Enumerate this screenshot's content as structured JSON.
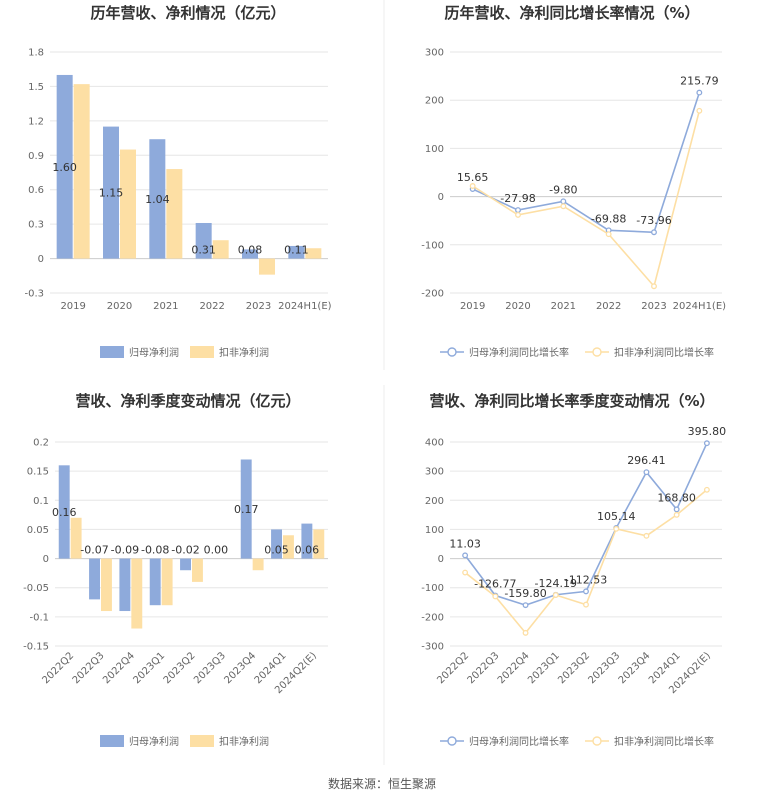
{
  "chart_data": [
    {
      "type": "bar",
      "title": "历年营收、净利情况（亿元）",
      "categories": [
        "2019",
        "2020",
        "2021",
        "2022",
        "2023",
        "2024H1(E)"
      ],
      "series": [
        {
          "name": "归母净利润",
          "values": [
            1.6,
            1.15,
            1.04,
            0.31,
            0.08,
            0.11
          ],
          "color": "#8eaadb",
          "labels": [
            "1.60",
            "1.15",
            "1.04",
            "0.31",
            "0.08",
            "0.11"
          ]
        },
        {
          "name": "扣非净利润",
          "values": [
            1.52,
            0.95,
            0.78,
            0.16,
            -0.14,
            0.09
          ],
          "color": "#fddfa4"
        }
      ],
      "yticks": [
        "1.8",
        "1.5",
        "1.2",
        "0.9",
        "0.6",
        "0.3",
        "0",
        "-0.3"
      ],
      "ylim": [
        -0.3,
        1.8
      ],
      "legend": "bottom"
    },
    {
      "type": "line",
      "title": "历年营收、净利同比增长率情况（%）",
      "categories": [
        "2019",
        "2020",
        "2021",
        "2022",
        "2023",
        "2024H1(E)"
      ],
      "series": [
        {
          "name": "归母净利润同比增长率",
          "values": [
            15.65,
            -27.98,
            -9.8,
            -69.88,
            -73.96,
            215.79
          ],
          "color": "#8eaadb",
          "labels": [
            "15.65",
            "-27.98",
            "-9.80",
            "-69.88",
            "-73.96",
            "215.79"
          ]
        },
        {
          "name": "扣非净利润同比增长率",
          "values": [
            22,
            -38,
            -20,
            -78,
            -186,
            178
          ],
          "color": "#fddfa4"
        }
      ],
      "yticks": [
        "300",
        "200",
        "100",
        "0",
        "-100",
        "-200"
      ],
      "ylim": [
        -200,
        300
      ],
      "legend": "bottom"
    },
    {
      "type": "bar",
      "title": "营收、净利季度变动情况（亿元）",
      "categories": [
        "2022Q2",
        "2022Q3",
        "2022Q4",
        "2023Q1",
        "2023Q2",
        "2023Q3",
        "2023Q4",
        "2024Q1",
        "2024Q2(E)"
      ],
      "series": [
        {
          "name": "归母净利润",
          "values": [
            0.16,
            -0.07,
            -0.09,
            -0.08,
            -0.02,
            0.0,
            0.17,
            0.05,
            0.06
          ],
          "color": "#8eaadb",
          "labels": [
            "0.16",
            "-0.07",
            "-0.09",
            "-0.08",
            "-0.02",
            "0.00",
            "0.17",
            "0.05",
            "0.06"
          ]
        },
        {
          "name": "扣非净利润",
          "values": [
            0.07,
            -0.09,
            -0.12,
            -0.08,
            -0.04,
            0.0,
            -0.02,
            0.04,
            0.05
          ],
          "color": "#fddfa4"
        }
      ],
      "yticks": [
        "0.2",
        "0.15",
        "0.1",
        "0.05",
        "0",
        "-0.05",
        "-0.1",
        "-0.15"
      ],
      "ylim": [
        -0.15,
        0.2
      ],
      "legend": "bottom"
    },
    {
      "type": "line",
      "title": "营收、净利同比增长率季度变动情况（%）",
      "categories": [
        "2022Q2",
        "2022Q3",
        "2022Q4",
        "2023Q1",
        "2023Q2",
        "2023Q3",
        "2023Q4",
        "2024Q1",
        "2024Q2(E)"
      ],
      "series": [
        {
          "name": "归母净利润同比增长率",
          "values": [
            11.03,
            -126.77,
            -159.8,
            -124.19,
            -112.53,
            105.14,
            296.41,
            168.8,
            395.8
          ],
          "color": "#8eaadb",
          "labels": [
            "11.03",
            "-126.77",
            "-159.80",
            "-124.19",
            "-112.53",
            "105.14",
            "296.41",
            "168.80",
            "395.80"
          ]
        },
        {
          "name": "扣非净利润同比增长率",
          "values": [
            -48,
            -130,
            -255,
            -125,
            -158,
            102,
            78,
            150,
            236
          ],
          "color": "#fddfa4"
        }
      ],
      "yticks": [
        "400",
        "300",
        "200",
        "100",
        "0",
        "-100",
        "-200",
        "-300"
      ],
      "ylim": [
        -300,
        400
      ],
      "legend": "bottom"
    }
  ],
  "footer": {
    "source": "数据来源：恒生聚源"
  },
  "colors": {
    "divider": "#e8e8e8",
    "grid": "#e6e6e6",
    "axis": "#cccccc"
  }
}
